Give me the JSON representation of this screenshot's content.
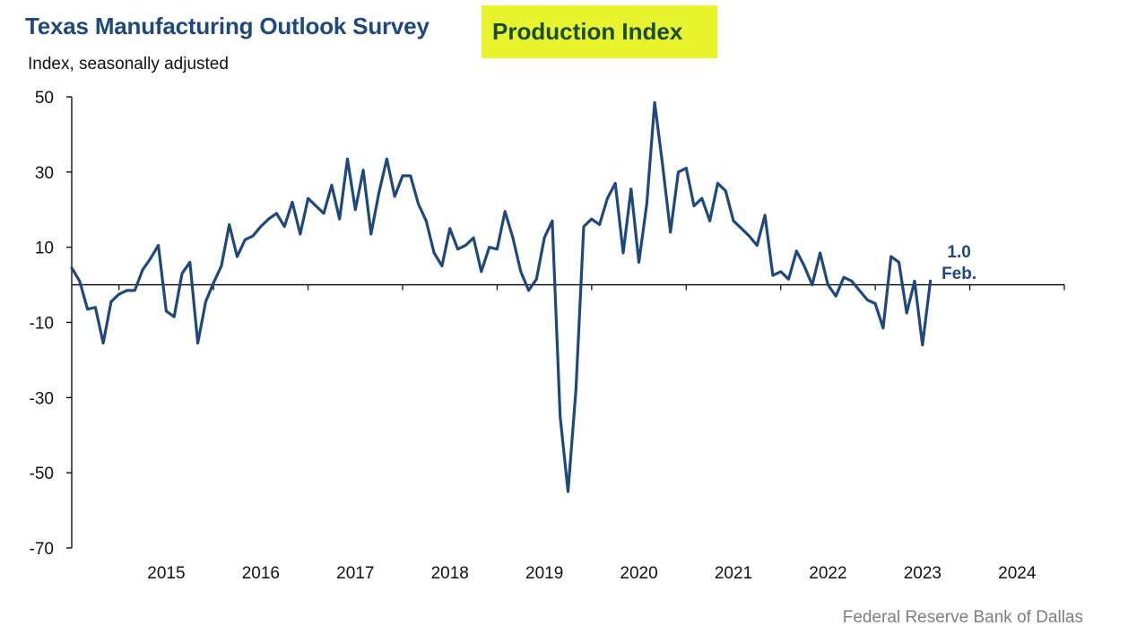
{
  "chart_data": {
    "type": "line",
    "title": "Texas Manufacturing Outlook Survey",
    "title_highlight": "Production Index",
    "subtitle": "Index, seasonally adjusted",
    "source": "Federal Reserve Bank of Dallas",
    "series_color": "#1f497d",
    "highlight_color": "#e8f52e",
    "ylim": [
      -70,
      50
    ],
    "yticks": [
      50,
      30,
      10,
      -10,
      -30,
      -50,
      -70
    ],
    "xticks": [
      {
        "label": "2015",
        "x": 2015
      },
      {
        "label": "2016",
        "x": 2016
      },
      {
        "label": "2017",
        "x": 2017
      },
      {
        "label": "2018",
        "x": 2018
      },
      {
        "label": "2019",
        "x": 2019
      },
      {
        "label": "2020",
        "x": 2020
      },
      {
        "label": "2021",
        "x": 2021
      },
      {
        "label": "2022",
        "x": 2022
      },
      {
        "label": "2023",
        "x": 2023
      },
      {
        "label": "2024",
        "x": 2024
      }
    ],
    "x_range": [
      2014.0,
      2024.5
    ],
    "start": 2014.0,
    "step": 0.08333,
    "values": [
      4.5,
      1,
      -6.5,
      -6,
      -15.5,
      -4.5,
      -2.5,
      -1.5,
      -1.5,
      4,
      7,
      10.5,
      -7,
      -8.5,
      3,
      6,
      -15.5,
      -4.5,
      0.5,
      5,
      16,
      7.5,
      12,
      13,
      15.5,
      17.5,
      19,
      15.5,
      22,
      13.5,
      23,
      21,
      19,
      26.5,
      17.5,
      33.5,
      20,
      30.5,
      13.5,
      24.5,
      33.5,
      23.5,
      29,
      29,
      21.5,
      17,
      8.5,
      5,
      15,
      9.5,
      10.5,
      12.5,
      3.5,
      10,
      9.5,
      19.5,
      12.5,
      3.5,
      -1.5,
      1.5,
      12.5,
      17,
      -35,
      -55,
      -28,
      15.5,
      17.5,
      16,
      23,
      27,
      8.5,
      25.5,
      6,
      21.5,
      48.5,
      32,
      14,
      30,
      31,
      21,
      23,
      17,
      27,
      25,
      17,
      15,
      13,
      10.5,
      18.5,
      2.5,
      3.5,
      1.5,
      9,
      5,
      0,
      8.5,
      0,
      -3,
      2,
      1,
      -1.5,
      -4,
      -5,
      -11.5,
      7.5,
      6,
      -7.5,
      1,
      -16,
      1
    ],
    "annotation": {
      "value": "1.0",
      "label": "Feb."
    }
  }
}
